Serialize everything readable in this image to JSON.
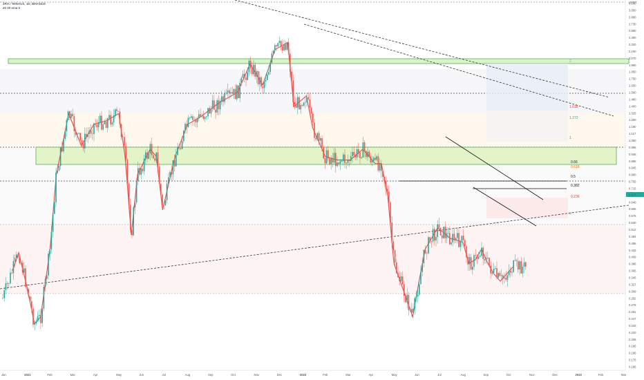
{
  "header": {
    "symbol_line": "ZRX / TetherUS, 1D, BINANCE",
    "indicator_line": "20 20 ema 0"
  },
  "chart_data": {
    "type": "candlestick",
    "y_axis_label": "USDT",
    "y_scale": "log",
    "y_ticks": [
      "3.230",
      "3.050",
      "2.880",
      "2.730",
      "2.590",
      "2.450",
      "2.320",
      "2.190",
      "2.070",
      "1.960",
      "1.850",
      "1.750",
      "1.650",
      "1.560",
      "1.480",
      "1.400",
      "1.325",
      "1.250",
      "1.180",
      "1.117",
      "1.050",
      "0.995",
      "0.945",
      "0.895",
      "0.845",
      "0.800",
      "0.755",
      "0.715",
      "0.675",
      "0.640",
      "0.605",
      "0.575",
      "0.540",
      "0.512",
      "0.484",
      "0.458",
      "0.433",
      "0.409",
      "0.386",
      "0.365",
      "0.345",
      "0.327",
      "0.309",
      "0.292",
      "0.276",
      "0.261",
      "0.247",
      "0.233",
      "0.220",
      "0.208",
      "0.196",
      "0.186",
      "0.176",
      "0.166"
    ],
    "x_ticks": [
      "Jan",
      "2021",
      "Feb",
      "Mar",
      "Apr",
      "May",
      "Jun",
      "Jul",
      "Aug",
      "Sep",
      "Oct",
      "Nov",
      "Dec",
      "2022",
      "Feb",
      "Mar",
      "Apr",
      "May",
      "Jun",
      "Jul",
      "Aug",
      "Sep",
      "Oct",
      "Nov",
      "Dec",
      "2023",
      "Feb",
      "Mar"
    ],
    "price_marker": "1.117",
    "series_colors": {
      "up": "#26a69a",
      "down": "#ef5350",
      "ema": "#e53935"
    },
    "fib_levels": [
      {
        "label": "2",
        "color": "#9e9e9e"
      },
      {
        "label": "1.618",
        "color": "#e53935"
      },
      {
        "label": "1.272",
        "color": "#26a69a"
      },
      {
        "label": "1",
        "color": "#e53935"
      },
      {
        "label": "0.66",
        "color": "#131722"
      },
      {
        "label": "0.618",
        "color": "#ef6c00"
      },
      {
        "label": "0.5",
        "color": "#131722"
      },
      {
        "label": "0.382",
        "color": "#131722"
      },
      {
        "label": "0.236",
        "color": "#e53935"
      },
      {
        "label": "0",
        "color": "#9e9e9e"
      }
    ],
    "zones": [
      {
        "name": "upper-supply-zone",
        "color": "#b9f6ca"
      },
      {
        "name": "mid-demand-zone",
        "color": "#ccff90"
      }
    ],
    "ema_path": [
      [
        0.02,
        0.28
      ],
      [
        0.03,
        0.33
      ],
      [
        0.045,
        0.22
      ],
      [
        0.055,
        0.13
      ],
      [
        0.065,
        0.15
      ],
      [
        0.08,
        0.34
      ],
      [
        0.09,
        0.55
      ],
      [
        0.11,
        0.72
      ],
      [
        0.13,
        0.63
      ],
      [
        0.15,
        0.69
      ],
      [
        0.17,
        0.7
      ],
      [
        0.19,
        0.72
      ],
      [
        0.2,
        0.6
      ],
      [
        0.21,
        0.38
      ],
      [
        0.22,
        0.55
      ],
      [
        0.24,
        0.62
      ],
      [
        0.25,
        0.6
      ],
      [
        0.26,
        0.45
      ],
      [
        0.28,
        0.6
      ],
      [
        0.3,
        0.69
      ],
      [
        0.32,
        0.71
      ],
      [
        0.35,
        0.75
      ],
      [
        0.38,
        0.78
      ],
      [
        0.4,
        0.86
      ],
      [
        0.42,
        0.8
      ],
      [
        0.44,
        0.9
      ],
      [
        0.46,
        0.92
      ],
      [
        0.47,
        0.74
      ],
      [
        0.49,
        0.77
      ],
      [
        0.5,
        0.68
      ],
      [
        0.52,
        0.6
      ],
      [
        0.54,
        0.59
      ],
      [
        0.56,
        0.59
      ],
      [
        0.58,
        0.62
      ],
      [
        0.6,
        0.58
      ],
      [
        0.61,
        0.58
      ],
      [
        0.62,
        0.49
      ],
      [
        0.63,
        0.3
      ],
      [
        0.65,
        0.2
      ],
      [
        0.66,
        0.15
      ],
      [
        0.67,
        0.25
      ],
      [
        0.68,
        0.34
      ],
      [
        0.7,
        0.4
      ],
      [
        0.72,
        0.37
      ],
      [
        0.74,
        0.36
      ],
      [
        0.75,
        0.3
      ],
      [
        0.76,
        0.31
      ],
      [
        0.77,
        0.34
      ],
      [
        0.78,
        0.3
      ],
      [
        0.79,
        0.27
      ],
      [
        0.8,
        0.25
      ],
      [
        0.81,
        0.27
      ],
      [
        0.82,
        0.29
      ]
    ]
  }
}
